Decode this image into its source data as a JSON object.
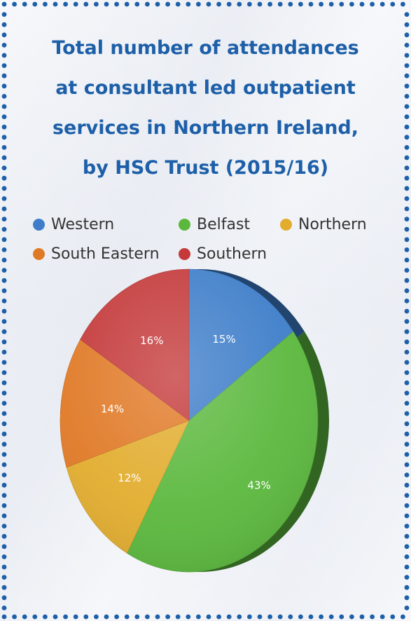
{
  "colors": {
    "title": "#1d5fa8",
    "border_dots": "#1d5fa8",
    "Western": "#3d7dc9",
    "Belfast": "#5bb83d",
    "Northern": "#e2ad2e",
    "South Eastern": "#e07926",
    "Southern": "#c4393a"
  },
  "chart_data": {
    "type": "pie",
    "title": "Total number of attendances at consultant led outpatient services in Northern Ireland, by HSC Trust (2015/16)",
    "title_lines": [
      "Total number of attendances",
      "at consultant led outpatient",
      "services in Northern Ireland,",
      "by HSC Trust (2015/16)"
    ],
    "legend_position": "top",
    "legend": [
      "Western",
      "Belfast",
      "Northern",
      "South Eastern",
      "Southern"
    ],
    "slices": [
      {
        "name": "Western",
        "value": 15,
        "label": "15%"
      },
      {
        "name": "Belfast",
        "value": 43,
        "label": "43%"
      },
      {
        "name": "Northern",
        "value": 12,
        "label": "12%"
      },
      {
        "name": "South Eastern",
        "value": 14,
        "label": "14%"
      },
      {
        "name": "Southern",
        "value": 16,
        "label": "16%"
      }
    ],
    "style": "3d-tilted"
  }
}
